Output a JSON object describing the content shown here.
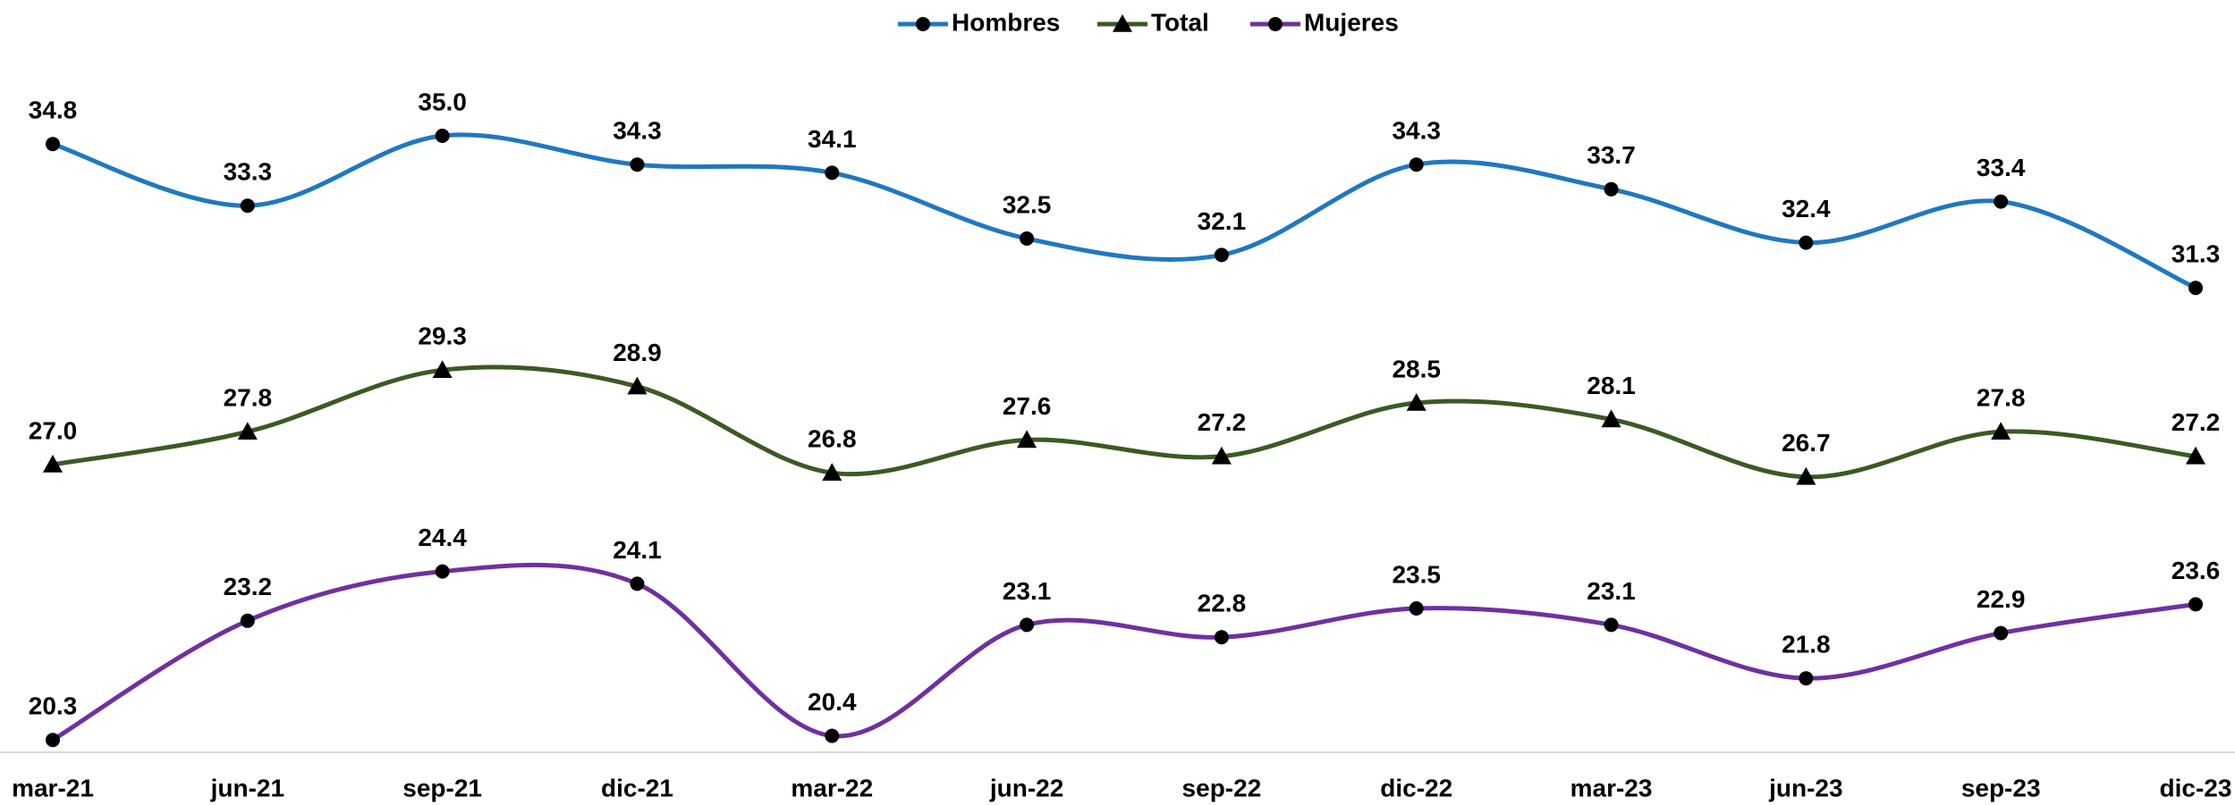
{
  "chart_data": {
    "type": "line",
    "categories": [
      "mar-21",
      "jun-21",
      "sep-21",
      "dic-21",
      "mar-22",
      "jun-22",
      "sep-22",
      "dic-22",
      "mar-23",
      "jun-23",
      "sep-23",
      "dic-23"
    ],
    "series": [
      {
        "name": "Hombres",
        "color": "#1f78c1",
        "marker": "circle",
        "values": [
          34.8,
          33.3,
          35,
          34.3,
          34.1,
          32.5,
          32.1,
          34.3,
          33.7,
          32.4,
          33.4,
          31.3
        ],
        "value_labels": [
          "34.8",
          "33.3",
          "35.0",
          "34.3",
          "34.1",
          "32.5",
          "32.1",
          "34.3",
          "33.7",
          "32.4",
          "33.4",
          "31.3"
        ]
      },
      {
        "name": "Total",
        "color": "#3b5a23",
        "marker": "triangle",
        "values": [
          27,
          27.8,
          29.3,
          28.9,
          26.8,
          27.6,
          27.2,
          28.5,
          28.1,
          26.7,
          27.8,
          27.2
        ],
        "value_labels": [
          "27.0",
          "27.8",
          "29.3",
          "28.9",
          "26.8",
          "27.6",
          "27.2",
          "28.5",
          "28.1",
          "26.7",
          "27.8",
          "27.2"
        ]
      },
      {
        "name": "Mujeres",
        "color": "#7030a0",
        "marker": "circle",
        "values": [
          20.3,
          23.2,
          24.4,
          24.1,
          20.4,
          23.1,
          22.8,
          23.5,
          23.1,
          21.8,
          22.9,
          23.6
        ],
        "value_labels": [
          "20.3",
          "23.2",
          "24.4",
          "24.1",
          "20.4",
          "23.1",
          "22.8",
          "23.5",
          "23.1",
          "21.8",
          "22.9",
          "23.6"
        ]
      }
    ],
    "ylim": [
      20,
      38
    ],
    "smooth": true,
    "legend": "top"
  }
}
